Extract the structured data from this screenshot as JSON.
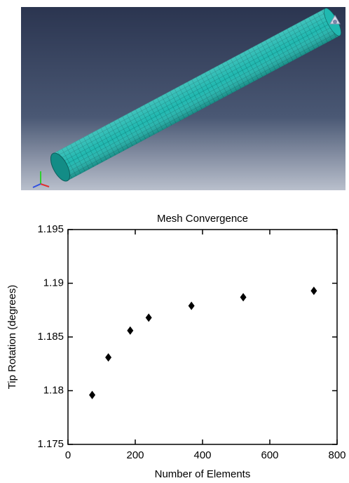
{
  "chart_data": {
    "type": "scatter",
    "title": "Mesh Convergence",
    "x_label": "Number of Elements",
    "y_label": "Tip Rotation (degrees)",
    "x": [
      72,
      120,
      185,
      240,
      367,
      521,
      731
    ],
    "values": [
      1.1796,
      1.1831,
      1.1856,
      1.1868,
      1.1879,
      1.1887,
      1.1893
    ],
    "color": "#000000",
    "marker": "diamond",
    "xlim": [
      0,
      800
    ],
    "xticks": [
      0,
      200,
      400,
      600,
      800
    ],
    "ylim": [
      1.175,
      1.195
    ],
    "yticks": [
      1.175,
      1.18,
      1.185,
      1.19,
      1.195
    ]
  }
}
